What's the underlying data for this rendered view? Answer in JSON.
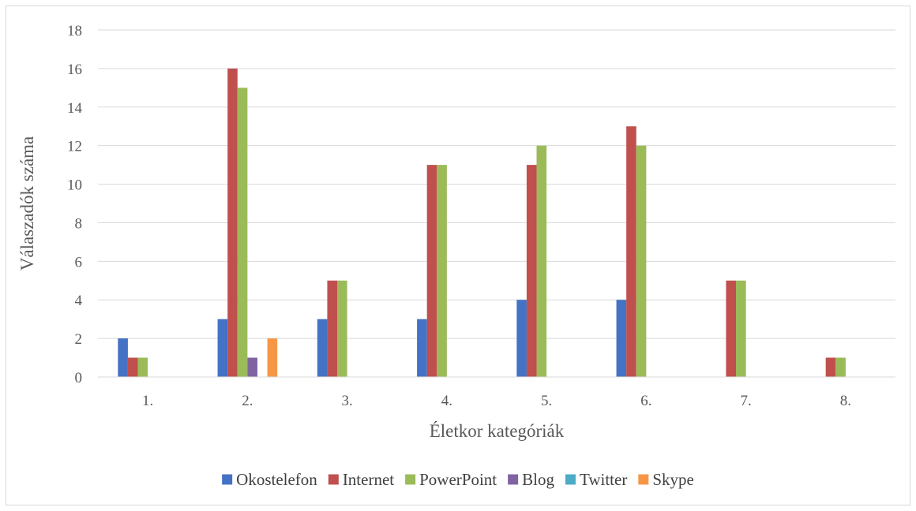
{
  "chart_data": {
    "type": "bar",
    "title": "",
    "xlabel": "Életkor kategóriák",
    "ylabel": "Válaszadók száma",
    "ylim": [
      0,
      18
    ],
    "ytick_step": 2,
    "categories": [
      "1.",
      "2.",
      "3.",
      "4.",
      "5.",
      "6.",
      "7.",
      "8."
    ],
    "series": [
      {
        "name": "Okostelefon",
        "color": "#4472C4",
        "values": [
          2,
          3,
          3,
          3,
          4,
          4,
          0,
          0
        ]
      },
      {
        "name": "Internet",
        "color": "#C0504D",
        "values": [
          1,
          16,
          5,
          11,
          11,
          13,
          5,
          1
        ]
      },
      {
        "name": "PowerPoint",
        "color": "#9BBB59",
        "values": [
          1,
          15,
          5,
          11,
          12,
          12,
          5,
          1
        ]
      },
      {
        "name": "Blog",
        "color": "#8064A2",
        "values": [
          0,
          1,
          0,
          0,
          0,
          0,
          0,
          0
        ]
      },
      {
        "name": "Twitter",
        "color": "#4BACC6",
        "values": [
          0,
          0,
          0,
          0,
          0,
          0,
          0,
          0
        ]
      },
      {
        "name": "Skype",
        "color": "#F79646",
        "values": [
          0,
          2,
          0,
          0,
          0,
          0,
          0,
          0
        ]
      }
    ],
    "grid": true,
    "legend_position": "bottom"
  }
}
